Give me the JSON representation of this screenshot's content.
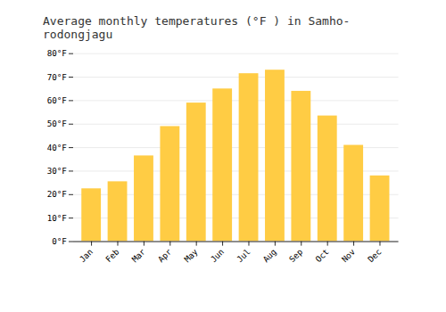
{
  "chart_data": {
    "type": "bar",
    "title": "Average monthly temperatures (°F ) in Samho-rodongjagu",
    "categories": [
      "Jan",
      "Feb",
      "Mar",
      "Apr",
      "May",
      "Jun",
      "Jul",
      "Aug",
      "Sep",
      "Oct",
      "Nov",
      "Dec"
    ],
    "values": [
      22.5,
      25.5,
      36.5,
      49.0,
      59.0,
      65.0,
      71.5,
      73.0,
      64.0,
      53.5,
      41.0,
      28.0
    ],
    "color": "#FFCC44",
    "ylim": [
      0,
      80
    ],
    "yticks": [
      {
        "value": 0,
        "label": "0°F"
      },
      {
        "value": 10,
        "label": "10°F"
      },
      {
        "value": 20,
        "label": "20°F"
      },
      {
        "value": 30,
        "label": "30°F"
      },
      {
        "value": 40,
        "label": "40°F"
      },
      {
        "value": 50,
        "label": "50°F"
      },
      {
        "value": 60,
        "label": "60°F"
      },
      {
        "value": 70,
        "label": "70°F"
      },
      {
        "value": 80,
        "label": "80°F"
      }
    ],
    "grid": true
  }
}
